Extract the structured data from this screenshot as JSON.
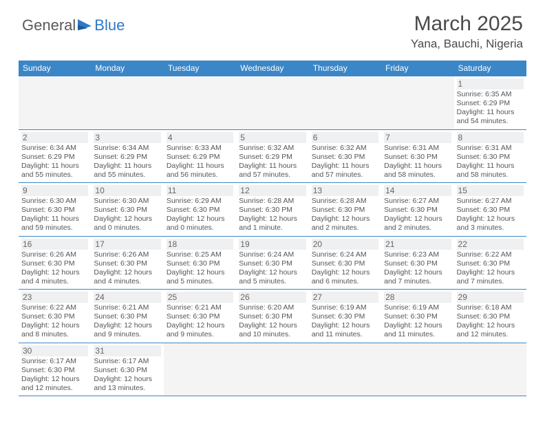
{
  "logo": {
    "general": "General",
    "blue": "Blue"
  },
  "title": "March 2025",
  "location": "Yana, Bauchi, Nigeria",
  "colors": {
    "header_bg": "#3b86c7",
    "header_fg": "#ffffff",
    "rule": "#3b86c7",
    "daynum_bg": "#eef0f1",
    "text": "#555555",
    "empty_bg": "#f4f4f4"
  },
  "dayNames": [
    "Sunday",
    "Monday",
    "Tuesday",
    "Wednesday",
    "Thursday",
    "Friday",
    "Saturday"
  ],
  "weeks": [
    [
      null,
      null,
      null,
      null,
      null,
      null,
      {
        "d": "1",
        "sr": "6:35 AM",
        "ss": "6:29 PM",
        "dl": "11 hours and 54 minutes."
      }
    ],
    [
      {
        "d": "2",
        "sr": "6:34 AM",
        "ss": "6:29 PM",
        "dl": "11 hours and 55 minutes."
      },
      {
        "d": "3",
        "sr": "6:34 AM",
        "ss": "6:29 PM",
        "dl": "11 hours and 55 minutes."
      },
      {
        "d": "4",
        "sr": "6:33 AM",
        "ss": "6:29 PM",
        "dl": "11 hours and 56 minutes."
      },
      {
        "d": "5",
        "sr": "6:32 AM",
        "ss": "6:29 PM",
        "dl": "11 hours and 57 minutes."
      },
      {
        "d": "6",
        "sr": "6:32 AM",
        "ss": "6:30 PM",
        "dl": "11 hours and 57 minutes."
      },
      {
        "d": "7",
        "sr": "6:31 AM",
        "ss": "6:30 PM",
        "dl": "11 hours and 58 minutes."
      },
      {
        "d": "8",
        "sr": "6:31 AM",
        "ss": "6:30 PM",
        "dl": "11 hours and 58 minutes."
      }
    ],
    [
      {
        "d": "9",
        "sr": "6:30 AM",
        "ss": "6:30 PM",
        "dl": "11 hours and 59 minutes."
      },
      {
        "d": "10",
        "sr": "6:30 AM",
        "ss": "6:30 PM",
        "dl": "12 hours and 0 minutes."
      },
      {
        "d": "11",
        "sr": "6:29 AM",
        "ss": "6:30 PM",
        "dl": "12 hours and 0 minutes."
      },
      {
        "d": "12",
        "sr": "6:28 AM",
        "ss": "6:30 PM",
        "dl": "12 hours and 1 minute."
      },
      {
        "d": "13",
        "sr": "6:28 AM",
        "ss": "6:30 PM",
        "dl": "12 hours and 2 minutes."
      },
      {
        "d": "14",
        "sr": "6:27 AM",
        "ss": "6:30 PM",
        "dl": "12 hours and 2 minutes."
      },
      {
        "d": "15",
        "sr": "6:27 AM",
        "ss": "6:30 PM",
        "dl": "12 hours and 3 minutes."
      }
    ],
    [
      {
        "d": "16",
        "sr": "6:26 AM",
        "ss": "6:30 PM",
        "dl": "12 hours and 4 minutes."
      },
      {
        "d": "17",
        "sr": "6:26 AM",
        "ss": "6:30 PM",
        "dl": "12 hours and 4 minutes."
      },
      {
        "d": "18",
        "sr": "6:25 AM",
        "ss": "6:30 PM",
        "dl": "12 hours and 5 minutes."
      },
      {
        "d": "19",
        "sr": "6:24 AM",
        "ss": "6:30 PM",
        "dl": "12 hours and 5 minutes."
      },
      {
        "d": "20",
        "sr": "6:24 AM",
        "ss": "6:30 PM",
        "dl": "12 hours and 6 minutes."
      },
      {
        "d": "21",
        "sr": "6:23 AM",
        "ss": "6:30 PM",
        "dl": "12 hours and 7 minutes."
      },
      {
        "d": "22",
        "sr": "6:22 AM",
        "ss": "6:30 PM",
        "dl": "12 hours and 7 minutes."
      }
    ],
    [
      {
        "d": "23",
        "sr": "6:22 AM",
        "ss": "6:30 PM",
        "dl": "12 hours and 8 minutes."
      },
      {
        "d": "24",
        "sr": "6:21 AM",
        "ss": "6:30 PM",
        "dl": "12 hours and 9 minutes."
      },
      {
        "d": "25",
        "sr": "6:21 AM",
        "ss": "6:30 PM",
        "dl": "12 hours and 9 minutes."
      },
      {
        "d": "26",
        "sr": "6:20 AM",
        "ss": "6:30 PM",
        "dl": "12 hours and 10 minutes."
      },
      {
        "d": "27",
        "sr": "6:19 AM",
        "ss": "6:30 PM",
        "dl": "12 hours and 11 minutes."
      },
      {
        "d": "28",
        "sr": "6:19 AM",
        "ss": "6:30 PM",
        "dl": "12 hours and 11 minutes."
      },
      {
        "d": "29",
        "sr": "6:18 AM",
        "ss": "6:30 PM",
        "dl": "12 hours and 12 minutes."
      }
    ],
    [
      {
        "d": "30",
        "sr": "6:17 AM",
        "ss": "6:30 PM",
        "dl": "12 hours and 12 minutes."
      },
      {
        "d": "31",
        "sr": "6:17 AM",
        "ss": "6:30 PM",
        "dl": "12 hours and 13 minutes."
      },
      null,
      null,
      null,
      null,
      null
    ]
  ],
  "labels": {
    "sunrise": "Sunrise:",
    "sunset": "Sunset:",
    "daylight": "Daylight:"
  }
}
